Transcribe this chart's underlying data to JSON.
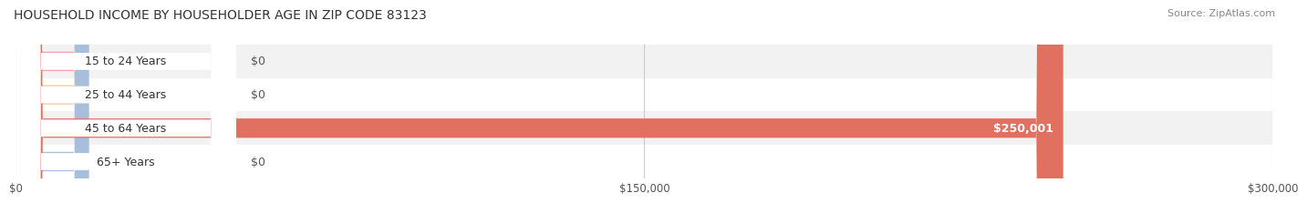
{
  "title": "HOUSEHOLD INCOME BY HOUSEHOLDER AGE IN ZIP CODE 83123",
  "source": "Source: ZipAtlas.com",
  "categories": [
    "15 to 24 Years",
    "25 to 44 Years",
    "45 to 64 Years",
    "65+ Years"
  ],
  "values": [
    0,
    0,
    250001,
    0
  ],
  "bar_colors": [
    "#f4a0b0",
    "#f5c98a",
    "#e07060",
    "#a8bedd"
  ],
  "row_bg_colors": [
    "#f2f2f2",
    "#ffffff",
    "#f2f2f2",
    "#ffffff"
  ],
  "xlim": [
    0,
    300000
  ],
  "xticks": [
    0,
    150000,
    300000
  ],
  "xtick_labels": [
    "$0",
    "$150,000",
    "$300,000"
  ],
  "title_fontsize": 10,
  "source_fontsize": 8,
  "tick_fontsize": 8.5,
  "label_fontsize": 9,
  "bar_height": 0.58,
  "background_color": "#ffffff"
}
